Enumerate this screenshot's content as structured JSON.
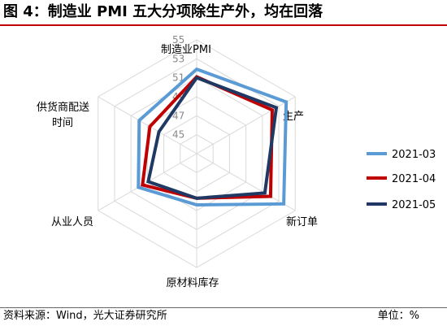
{
  "header": {
    "title": "图 4：制造业 PMI 五大分项除生产外，均在回落"
  },
  "footer": {
    "source": "资料来源：Wind，光大证券研究所",
    "unit": "单位：%"
  },
  "chart_data": {
    "type": "radar",
    "axes": [
      "制造业PMI",
      "生产",
      "新订单",
      "原材料库存",
      "从业人员",
      "供货商配送时间"
    ],
    "r_ticks": [
      "45",
      "47",
      "49",
      "51",
      "53",
      "55"
    ],
    "r_range": [
      43,
      55
    ],
    "grid": true,
    "legend_position": "right",
    "series": [
      {
        "name": "2021-03",
        "color": "#5b9bd5",
        "values": [
          51.9,
          53.9,
          53.6,
          48.4,
          50.1,
          50.0
        ]
      },
      {
        "name": "2021-04",
        "color": "#c00000",
        "values": [
          51.1,
          52.2,
          52.0,
          47.7,
          49.6,
          48.7
        ]
      },
      {
        "name": "2021-05",
        "color": "#1f3864",
        "values": [
          51.0,
          52.7,
          51.3,
          47.7,
          48.9,
          47.6
        ]
      }
    ]
  }
}
